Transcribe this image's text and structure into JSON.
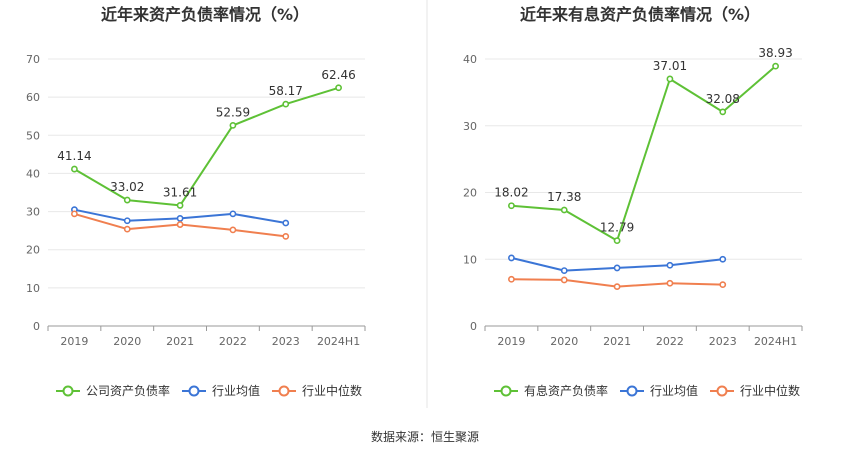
{
  "source_text": "数据来源：恒生聚源",
  "chart_data": [
    {
      "type": "line",
      "title": "近年来资产负债率情况（%）",
      "xlabel": "",
      "ylabel": "",
      "categories": [
        "2019",
        "2020",
        "2021",
        "2022",
        "2023",
        "2024H1"
      ],
      "ylim": [
        0,
        70
      ],
      "yticks": [
        "0",
        "10",
        "20",
        "30",
        "40",
        "50",
        "60",
        "70"
      ],
      "grid": true,
      "legend_position": "bottom",
      "series": [
        {
          "name": "公司资产负债率",
          "color": "#5ec136",
          "labels": true,
          "values": [
            41.14,
            33.02,
            31.61,
            52.59,
            58.17,
            62.46
          ],
          "value_labels": [
            "41.14",
            "33.02",
            "31.61",
            "52.59",
            "58.17",
            "62.46"
          ]
        },
        {
          "name": "行业均值",
          "color": "#3b75d6",
          "labels": false,
          "values": [
            30.5,
            27.6,
            28.2,
            29.4,
            27.0,
            null
          ]
        },
        {
          "name": "行业中位数",
          "color": "#f07f4f",
          "labels": false,
          "values": [
            29.4,
            25.4,
            26.6,
            25.2,
            23.5,
            null
          ]
        }
      ]
    },
    {
      "type": "line",
      "title": "近年来有息资产负债率情况（%）",
      "xlabel": "",
      "ylabel": "",
      "categories": [
        "2019",
        "2020",
        "2021",
        "2022",
        "2023",
        "2024H1"
      ],
      "ylim": [
        0,
        40
      ],
      "yticks": [
        "0",
        "10",
        "20",
        "30",
        "40"
      ],
      "grid": true,
      "legend_position": "bottom",
      "series": [
        {
          "name": "有息资产负债率",
          "color": "#5ec136",
          "labels": true,
          "values": [
            18.02,
            17.38,
            12.79,
            37.01,
            32.08,
            38.93
          ],
          "value_labels": [
            "18.02",
            "17.38",
            "12.79",
            "37.01",
            "32.08",
            "38.93"
          ]
        },
        {
          "name": "行业均值",
          "color": "#3b75d6",
          "labels": false,
          "values": [
            10.2,
            8.3,
            8.7,
            9.1,
            10.0,
            null
          ]
        },
        {
          "name": "行业中位数",
          "color": "#f07f4f",
          "labels": false,
          "values": [
            7.0,
            6.9,
            5.9,
            6.4,
            6.2,
            null
          ]
        }
      ]
    }
  ]
}
